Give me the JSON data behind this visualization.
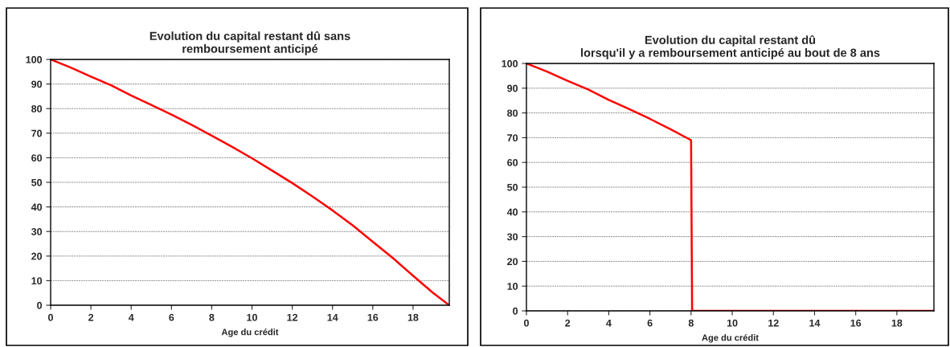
{
  "chart_data": [
    {
      "type": "line",
      "title": "Evolution du capital restant dû sans\nremboursement anticipé",
      "xlabel": "Age du crédit",
      "x": [
        0,
        1,
        2,
        3,
        4,
        5,
        6,
        7,
        8,
        9,
        10,
        11,
        12,
        13,
        14,
        15,
        16,
        17,
        18,
        19,
        19.8
      ],
      "series": [
        {
          "color": "#ff0000",
          "values": [
            100,
            96.7,
            93,
            89.5,
            85.3,
            81.5,
            77.6,
            73.4,
            69,
            64.5,
            59.8,
            54.8,
            49.7,
            44.3,
            38.6,
            32.5,
            25.8,
            19.2,
            12,
            5,
            0
          ]
        }
      ],
      "xlim": [
        0,
        19.8
      ],
      "xticks": [
        0,
        2,
        4,
        6,
        8,
        10,
        12,
        14,
        16,
        18
      ],
      "ylim": [
        0,
        100
      ],
      "yticks": [
        0,
        10,
        20,
        30,
        40,
        50,
        60,
        70,
        80,
        90,
        100
      ],
      "grid": "y",
      "legend": false,
      "marker": "none",
      "line_style": "solid"
    },
    {
      "type": "line",
      "title": "Evolution du capital restant dû\nlorsqu'il y a remboursement anticipé au bout de 8 ans",
      "xlabel": "Age du crédit",
      "x": [
        0,
        1,
        2,
        3,
        4,
        5,
        6,
        7,
        8,
        8.05,
        19.8
      ],
      "series": [
        {
          "color": "#ff0000",
          "values": [
            100,
            96.7,
            93,
            89.5,
            85.3,
            81.5,
            77.6,
            73.4,
            69,
            0,
            0
          ]
        }
      ],
      "xlim": [
        0,
        19.8
      ],
      "xticks": [
        0,
        2,
        4,
        6,
        8,
        10,
        12,
        14,
        16,
        18
      ],
      "ylim": [
        0,
        100
      ],
      "yticks": [
        0,
        10,
        20,
        30,
        40,
        50,
        60,
        70,
        80,
        90,
        100
      ],
      "grid": "y",
      "legend": false,
      "marker": "none",
      "line_style": "solid"
    }
  ]
}
